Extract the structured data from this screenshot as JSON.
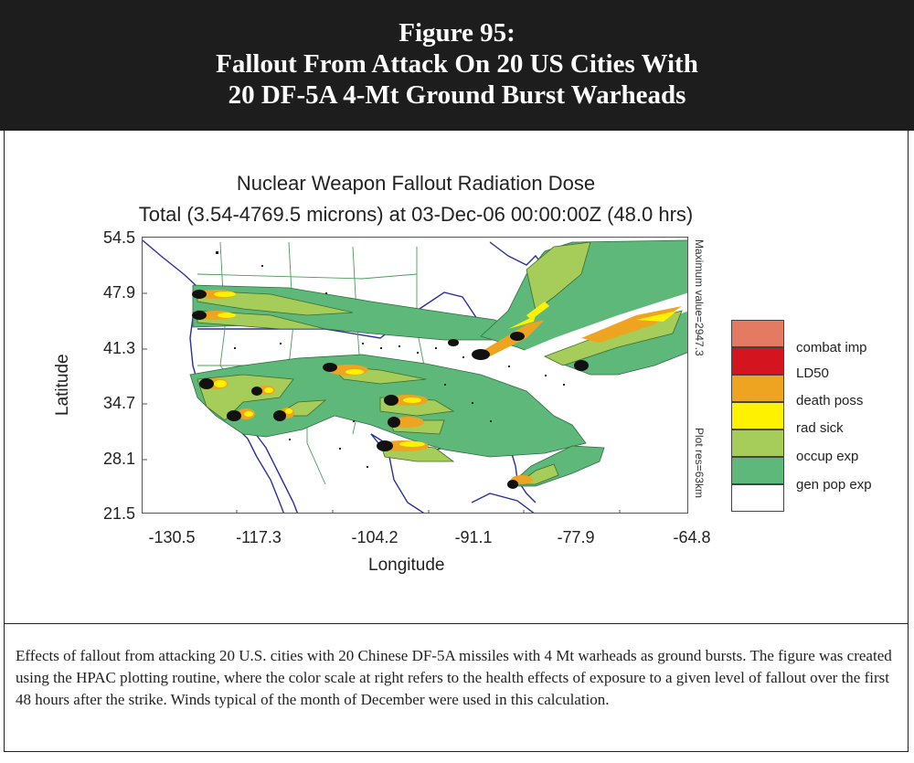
{
  "figure": {
    "title_lines": [
      "Figure 95:",
      "Fallout From Attack On 20 US Cities With",
      "20 DF-5A 4-Mt Ground Burst Warheads"
    ]
  },
  "plot": {
    "title": "Nuclear Weapon Fallout Radiation Dose",
    "subtitle": "Total (3.54-4769.5 microns) at 03-Dec-06 00:00:00Z (48.0 hrs)",
    "ylabel": "Latitude",
    "xlabel": "Longitude",
    "y_ticks": [
      "54.5",
      "47.9",
      "41.3",
      "34.7",
      "28.1",
      "21.5"
    ],
    "x_ticks": [
      "-130.5",
      "-117.3",
      "-104.2",
      "-91.1",
      "-77.9",
      "-64.8"
    ],
    "max_value_note": "Maximum value=2947.3",
    "resolution_note": "Plot res=63km"
  },
  "legend": [
    {
      "label": "combat imp",
      "color": "#e57a62"
    },
    {
      "label": "LD50",
      "color": "#d4141e"
    },
    {
      "label": "death poss",
      "color": "#eea420"
    },
    {
      "label": "rad sick",
      "color": "#fff200"
    },
    {
      "label": "occup exp",
      "color": "#a6cc5a"
    },
    {
      "label": "gen pop exp",
      "color": "#5db87a"
    },
    {
      "label": "",
      "color": "#ffffff"
    }
  ],
  "caption": "Effects of fallout from attacking 20 U.S. cities with 20 Chinese DF-5A missiles with 4 Mt warheads as ground bursts. The figure was created using the HPAC plotting routine, where the color scale at right refers to the health effects of exposure to a given level of fallout over the first 48 hours after the strike. Winds typical of the month of December were used in this calculation."
}
